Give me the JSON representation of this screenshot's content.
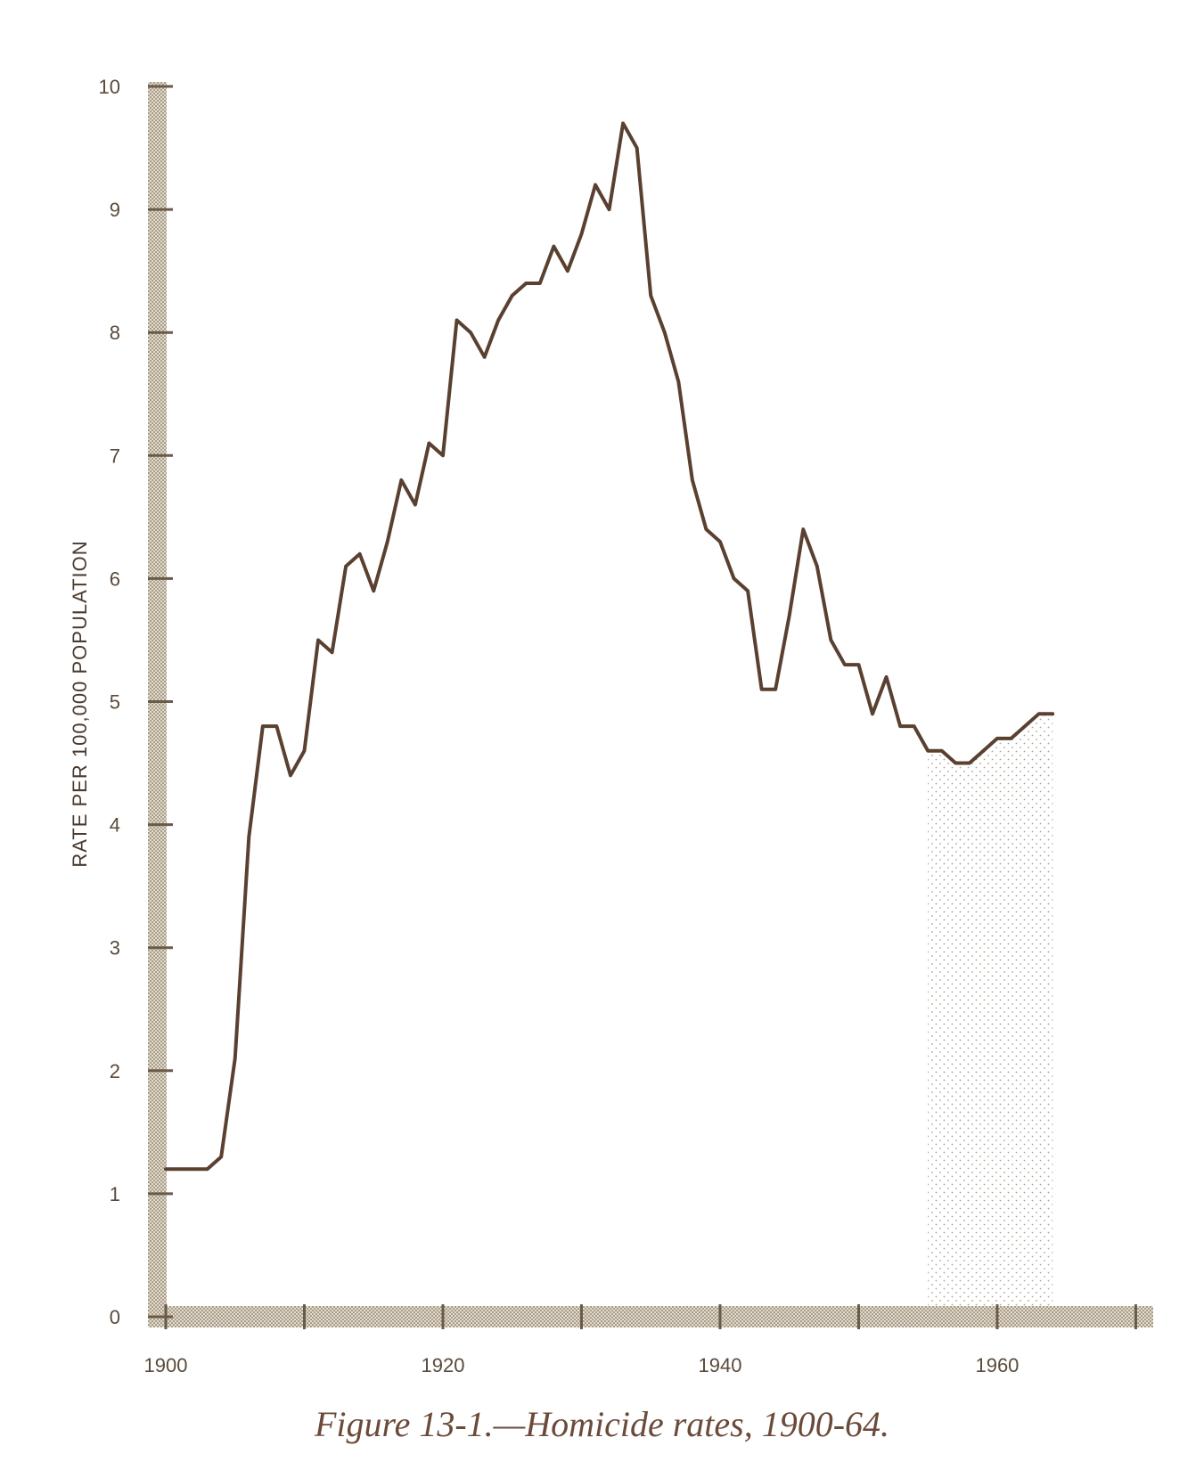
{
  "caption": "Figure 13-1.—Homicide rates, 1900-64.",
  "colors": {
    "line": "#5a4030",
    "axis": "#b8ad9a",
    "text": "#5a4a3a",
    "caption": "#6b4a3a",
    "fill_dots": "#8a7a68"
  },
  "chart_data": {
    "type": "line",
    "title": "Figure 13-1.—Homicide rates, 1900-64.",
    "ylabel": "RATE PER 100,000 POPULATION",
    "xlabel": "",
    "xlim": [
      1900,
      1971
    ],
    "ylim": [
      0,
      10
    ],
    "x_ticks": [
      1900,
      1920,
      1940,
      1960
    ],
    "y_ticks": [
      0,
      1,
      2,
      3,
      4,
      5,
      6,
      7,
      8,
      9,
      10
    ],
    "grid": false,
    "series": [
      {
        "x": [
          1900,
          1901,
          1902,
          1903,
          1904,
          1905,
          1906,
          1907,
          1908,
          1909,
          1910,
          1911,
          1912,
          1913,
          1914,
          1915,
          1916,
          1917,
          1918,
          1919,
          1920,
          1921,
          1922,
          1923,
          1924,
          1925,
          1926,
          1927,
          1928,
          1929,
          1930,
          1931,
          1932,
          1933,
          1934,
          1935,
          1936,
          1937,
          1938,
          1939,
          1940,
          1941,
          1942,
          1943,
          1944,
          1945,
          1946,
          1947,
          1948,
          1949,
          1950,
          1951,
          1952,
          1953,
          1954,
          1955,
          1956,
          1957,
          1958,
          1959,
          1960,
          1961,
          1962,
          1963,
          1964
        ],
        "y": [
          1.2,
          1.2,
          1.2,
          1.2,
          1.3,
          2.1,
          3.9,
          4.8,
          4.8,
          4.4,
          4.6,
          5.5,
          5.4,
          6.1,
          6.2,
          5.9,
          6.3,
          6.8,
          6.6,
          7.1,
          7.0,
          8.1,
          8.0,
          7.8,
          8.1,
          8.3,
          8.4,
          8.4,
          8.7,
          8.5,
          8.8,
          9.2,
          9.0,
          9.7,
          9.5,
          8.3,
          8.0,
          7.6,
          6.8,
          6.4,
          6.3,
          6.0,
          5.9,
          5.1,
          5.1,
          5.7,
          6.4,
          6.1,
          5.5,
          5.3,
          5.3,
          4.9,
          5.2,
          4.8,
          4.8,
          4.6,
          4.6,
          4.5,
          4.5,
          4.6,
          4.7,
          4.7,
          4.8,
          4.9,
          4.9
        ]
      }
    ]
  }
}
